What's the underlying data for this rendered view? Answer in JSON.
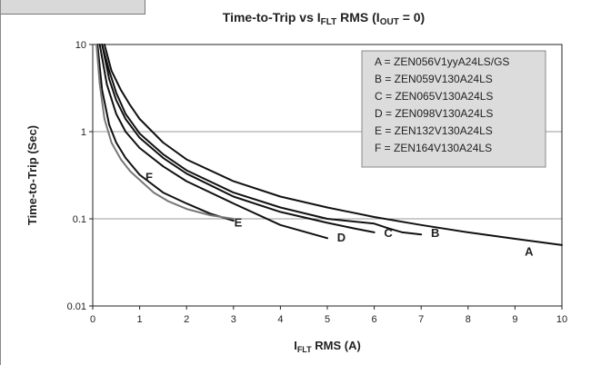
{
  "chart_data": {
    "type": "line",
    "title": {
      "main": "Time-to-Trip vs I",
      "sub1": "FLT",
      "mid": " RMS (I",
      "sub2": "OUT",
      "end": " = 0)"
    },
    "xlabel": {
      "main": "I",
      "sub": "FLT",
      "rest": " RMS (A)"
    },
    "ylabel": "Time-to-Trip (Sec)",
    "x_scale": "linear",
    "y_scale": "log",
    "xlim": [
      0,
      10
    ],
    "ylim": [
      0.01,
      10
    ],
    "x_ticks": [
      "0",
      "1",
      "2",
      "3",
      "4",
      "5",
      "6",
      "7",
      "8",
      "9",
      "10"
    ],
    "y_ticks": [
      {
        "value": 0.01,
        "label": "0.01"
      },
      {
        "value": 0.1,
        "label": "0.1"
      },
      {
        "value": 1,
        "label": "1"
      },
      {
        "value": 10,
        "label": "10"
      }
    ],
    "grid": "horizontal",
    "legend_placement": "top-right",
    "legend": [
      "A = ZEN056V1yyA24LS/GS",
      "B = ZEN059V130A24LS",
      "C = ZEN065V130A24LS",
      "D = ZEN098V130A24LS",
      "E = ZEN132V130A24LS",
      "F = ZEN164V130A24LS"
    ],
    "series": [
      {
        "name": "A",
        "color": "#111111",
        "x": [
          0.25,
          0.4,
          0.6,
          0.8,
          1.0,
          1.5,
          2.0,
          3.0,
          4.0,
          5.0,
          6.0,
          7.0,
          8.0,
          9.0,
          10.0
        ],
        "y": [
          10,
          5.0,
          3.0,
          2.0,
          1.4,
          0.75,
          0.48,
          0.27,
          0.18,
          0.135,
          0.105,
          0.085,
          0.07,
          0.059,
          0.05
        ]
      },
      {
        "name": "B",
        "color": "#111111",
        "x": [
          0.2,
          0.35,
          0.5,
          0.7,
          1.0,
          1.5,
          2.0,
          3.0,
          4.0,
          5.0,
          6.0,
          6.3,
          6.6,
          7.0
        ],
        "y": [
          10,
          5.0,
          2.8,
          1.6,
          0.95,
          0.55,
          0.36,
          0.2,
          0.135,
          0.1,
          0.088,
          0.078,
          0.07,
          0.066
        ]
      },
      {
        "name": "C",
        "color": "#111111",
        "x": [
          0.2,
          0.35,
          0.5,
          0.7,
          1.0,
          1.5,
          2.0,
          3.0,
          4.0,
          5.0,
          5.6,
          6.0
        ],
        "y": [
          10,
          4.0,
          2.3,
          1.4,
          0.85,
          0.5,
          0.33,
          0.18,
          0.12,
          0.09,
          0.077,
          0.07
        ]
      },
      {
        "name": "D",
        "color": "#111111",
        "x": [
          0.15,
          0.3,
          0.5,
          0.7,
          1.0,
          1.5,
          2.0,
          3.0,
          4.0,
          5.0
        ],
        "y": [
          10,
          3.5,
          1.6,
          1.0,
          0.65,
          0.4,
          0.27,
          0.15,
          0.085,
          0.06
        ]
      },
      {
        "name": "E",
        "color": "#111111",
        "x": [
          0.1,
          0.2,
          0.35,
          0.5,
          0.7,
          1.0,
          1.5,
          2.0,
          2.5,
          3.0
        ],
        "y": [
          10,
          3.0,
          1.2,
          0.75,
          0.5,
          0.32,
          0.2,
          0.15,
          0.115,
          0.095
        ]
      },
      {
        "name": "F",
        "color": "#777777",
        "x": [
          0.08,
          0.15,
          0.25,
          0.4,
          0.6,
          0.8,
          1.0,
          1.3,
          1.6,
          2.0,
          2.5,
          3.0
        ],
        "y": [
          10,
          3.5,
          1.4,
          0.75,
          0.48,
          0.35,
          0.28,
          0.2,
          0.16,
          0.13,
          0.11,
          0.1
        ]
      }
    ],
    "curve_labels": [
      {
        "text": "A",
        "x": 9.3,
        "y": 0.038
      },
      {
        "text": "B",
        "x": 7.3,
        "y": 0.062
      },
      {
        "text": "C",
        "x": 6.3,
        "y": 0.062
      },
      {
        "text": "D",
        "x": 5.3,
        "y": 0.055
      },
      {
        "text": "E",
        "x": 3.1,
        "y": 0.082
      },
      {
        "text": "F",
        "x": 1.2,
        "y": 0.27
      }
    ]
  }
}
